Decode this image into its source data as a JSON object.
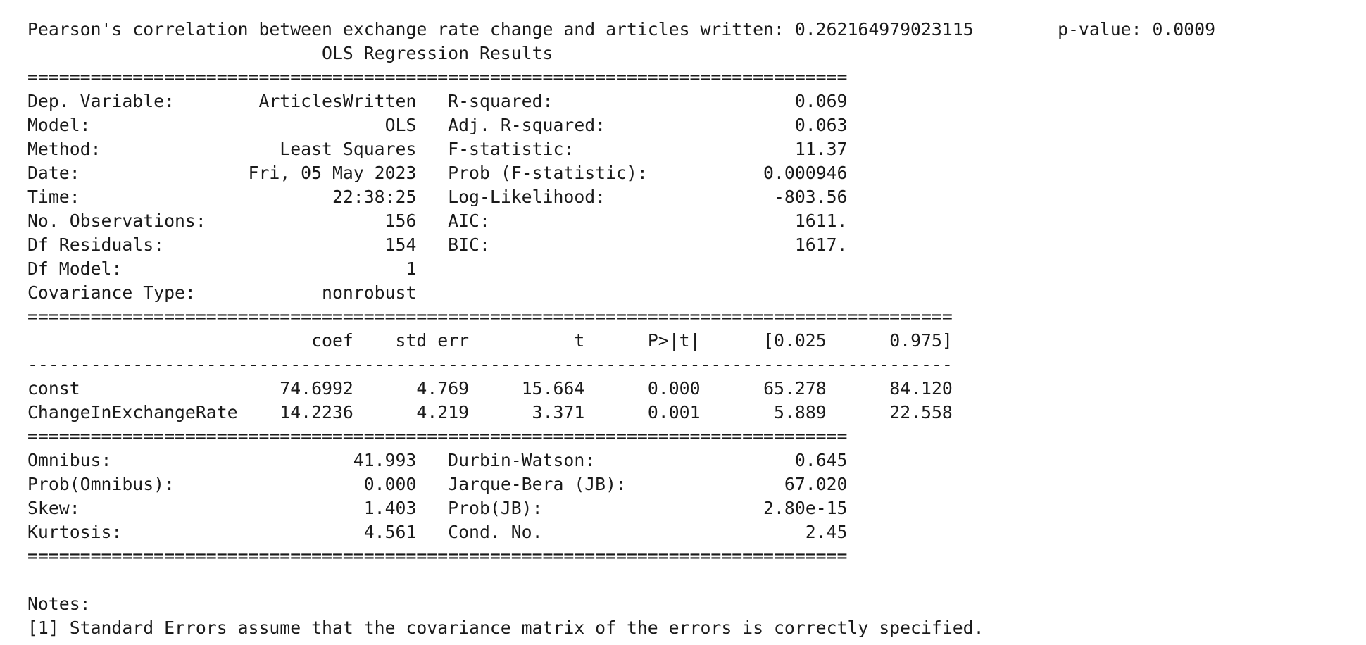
{
  "correlation": {
    "label": "Pearson's correlation between exchange rate change and articles written:",
    "value": "0.262164979023115",
    "pvalue_label": "p-value:",
    "pvalue": "0.0009"
  },
  "summary": {
    "title": "OLS Regression Results",
    "left_rows": [
      {
        "label": "Dep. Variable:",
        "value": "ArticlesWritten"
      },
      {
        "label": "Model:",
        "value": "OLS"
      },
      {
        "label": "Method:",
        "value": "Least Squares"
      },
      {
        "label": "Date:",
        "value": "Fri, 05 May 2023"
      },
      {
        "label": "Time:",
        "value": "22:38:25"
      },
      {
        "label": "No. Observations:",
        "value": "156"
      },
      {
        "label": "Df Residuals:",
        "value": "154"
      },
      {
        "label": "Df Model:",
        "value": "1"
      },
      {
        "label": "Covariance Type:",
        "value": "nonrobust"
      }
    ],
    "right_rows": [
      {
        "label": "R-squared:",
        "value": "0.069"
      },
      {
        "label": "Adj. R-squared:",
        "value": "0.063"
      },
      {
        "label": "F-statistic:",
        "value": "11.37"
      },
      {
        "label": "Prob (F-statistic):",
        "value": "0.000946"
      },
      {
        "label": "Log-Likelihood:",
        "value": "-803.56"
      },
      {
        "label": "AIC:",
        "value": "1611."
      },
      {
        "label": "BIC:",
        "value": "1617."
      }
    ]
  },
  "coefficients": {
    "headers": [
      "coef",
      "std err",
      "t",
      "P>|t|",
      "[0.025",
      "0.975]"
    ],
    "rows": [
      {
        "name": "const",
        "values": [
          "74.6992",
          "4.769",
          "15.664",
          "0.000",
          "65.278",
          "84.120"
        ]
      },
      {
        "name": "ChangeInExchangeRate",
        "values": [
          "14.2236",
          "4.219",
          "3.371",
          "0.001",
          "5.889",
          "22.558"
        ]
      }
    ]
  },
  "diagnostics": {
    "left_rows": [
      {
        "label": "Omnibus:",
        "value": "41.993"
      },
      {
        "label": "Prob(Omnibus):",
        "value": "0.000"
      },
      {
        "label": "Skew:",
        "value": "1.403"
      },
      {
        "label": "Kurtosis:",
        "value": "4.561"
      }
    ],
    "right_rows": [
      {
        "label": "Durbin-Watson:",
        "value": "0.645"
      },
      {
        "label": "Jarque-Bera (JB):",
        "value": "67.020"
      },
      {
        "label": "Prob(JB):",
        "value": "2.80e-15"
      },
      {
        "label": "Cond. No.",
        "value": "2.45"
      }
    ]
  },
  "notes": {
    "heading": "Notes:",
    "items": [
      "[1] Standard Errors assume that the covariance matrix of the errors is correctly specified."
    ]
  }
}
